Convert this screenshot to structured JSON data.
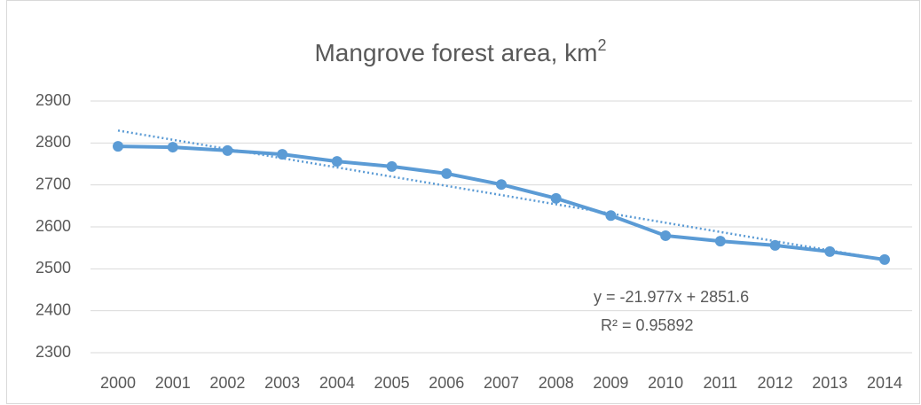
{
  "chart_data": {
    "type": "line",
    "title": "Mangrove forest area, km",
    "title_superscript": "2",
    "categories": [
      "2000",
      "2001",
      "2002",
      "2003",
      "2004",
      "2005",
      "2006",
      "2007",
      "2008",
      "2009",
      "2010",
      "2011",
      "2012",
      "2013",
      "2014"
    ],
    "series": [
      {
        "name": "Mangrove forest area",
        "color": "#5b9bd5",
        "values": [
          2792,
          2790,
          2782,
          2773,
          2756,
          2744,
          2727,
          2701,
          2668,
          2627,
          2579,
          2566,
          2556,
          2541,
          2522
        ]
      }
    ],
    "ylim": [
      2300,
      2900
    ],
    "yticks": [
      2300,
      2400,
      2500,
      2600,
      2700,
      2800,
      2900
    ],
    "grid": true,
    "trendline": {
      "slope": -21.977,
      "intercept": 2851.6,
      "color": "#5b9bd5",
      "equation": "y = -21.977x + 2851.6",
      "r_squared": "R² = 0.95892"
    }
  }
}
